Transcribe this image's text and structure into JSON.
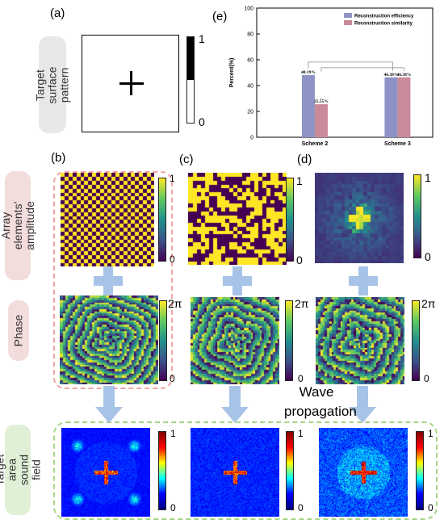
{
  "panel_labels": {
    "a": "(a)",
    "b": "(b)",
    "c": "(c)",
    "d": "(d)",
    "e": "(e)"
  },
  "row_labels": {
    "target_pattern": "Target surface pattern",
    "amplitude": "Array elements' amplitude",
    "phase": "Phase",
    "sound_field": "Target area sound field"
  },
  "colorbars": {
    "binary": {
      "max": "1",
      "min": "0"
    },
    "amplitude": {
      "max": "1",
      "min": "0"
    },
    "phase": {
      "max": "2π",
      "min": "0"
    },
    "field": {
      "max": "1",
      "min": "0"
    }
  },
  "wave_propagation": "Wave propagation",
  "colors": {
    "viridis_low": "#440154",
    "viridis_high": "#fde725",
    "dashed_red": "#f4a3a3",
    "dashed_green": "#a6d785",
    "arrow_blue": "#a7c4e8",
    "bar_blue": "#8e93c6",
    "bar_pink": "#c98a9a"
  },
  "chart_data": {
    "type": "bar",
    "categories": [
      "Scheme 2",
      "Scheme 3"
    ],
    "series": [
      {
        "name": "Reconstruction efficiency",
        "values": [
          48.19,
          46.38
        ],
        "labels": [
          "48.19%",
          "46.38%"
        ],
        "color": "#8e93c6"
      },
      {
        "name": "Reconstruction similarity",
        "values": [
          25.55,
          46.38
        ],
        "labels": [
          "25.55%",
          "46.38%"
        ],
        "color": "#c98a9a"
      }
    ],
    "ylabel": "Percent(%)",
    "ylim": [
      0,
      100
    ],
    "yticks": [
      "0",
      "20",
      "40",
      "60",
      "80",
      "100"
    ],
    "legend": "top-right"
  }
}
